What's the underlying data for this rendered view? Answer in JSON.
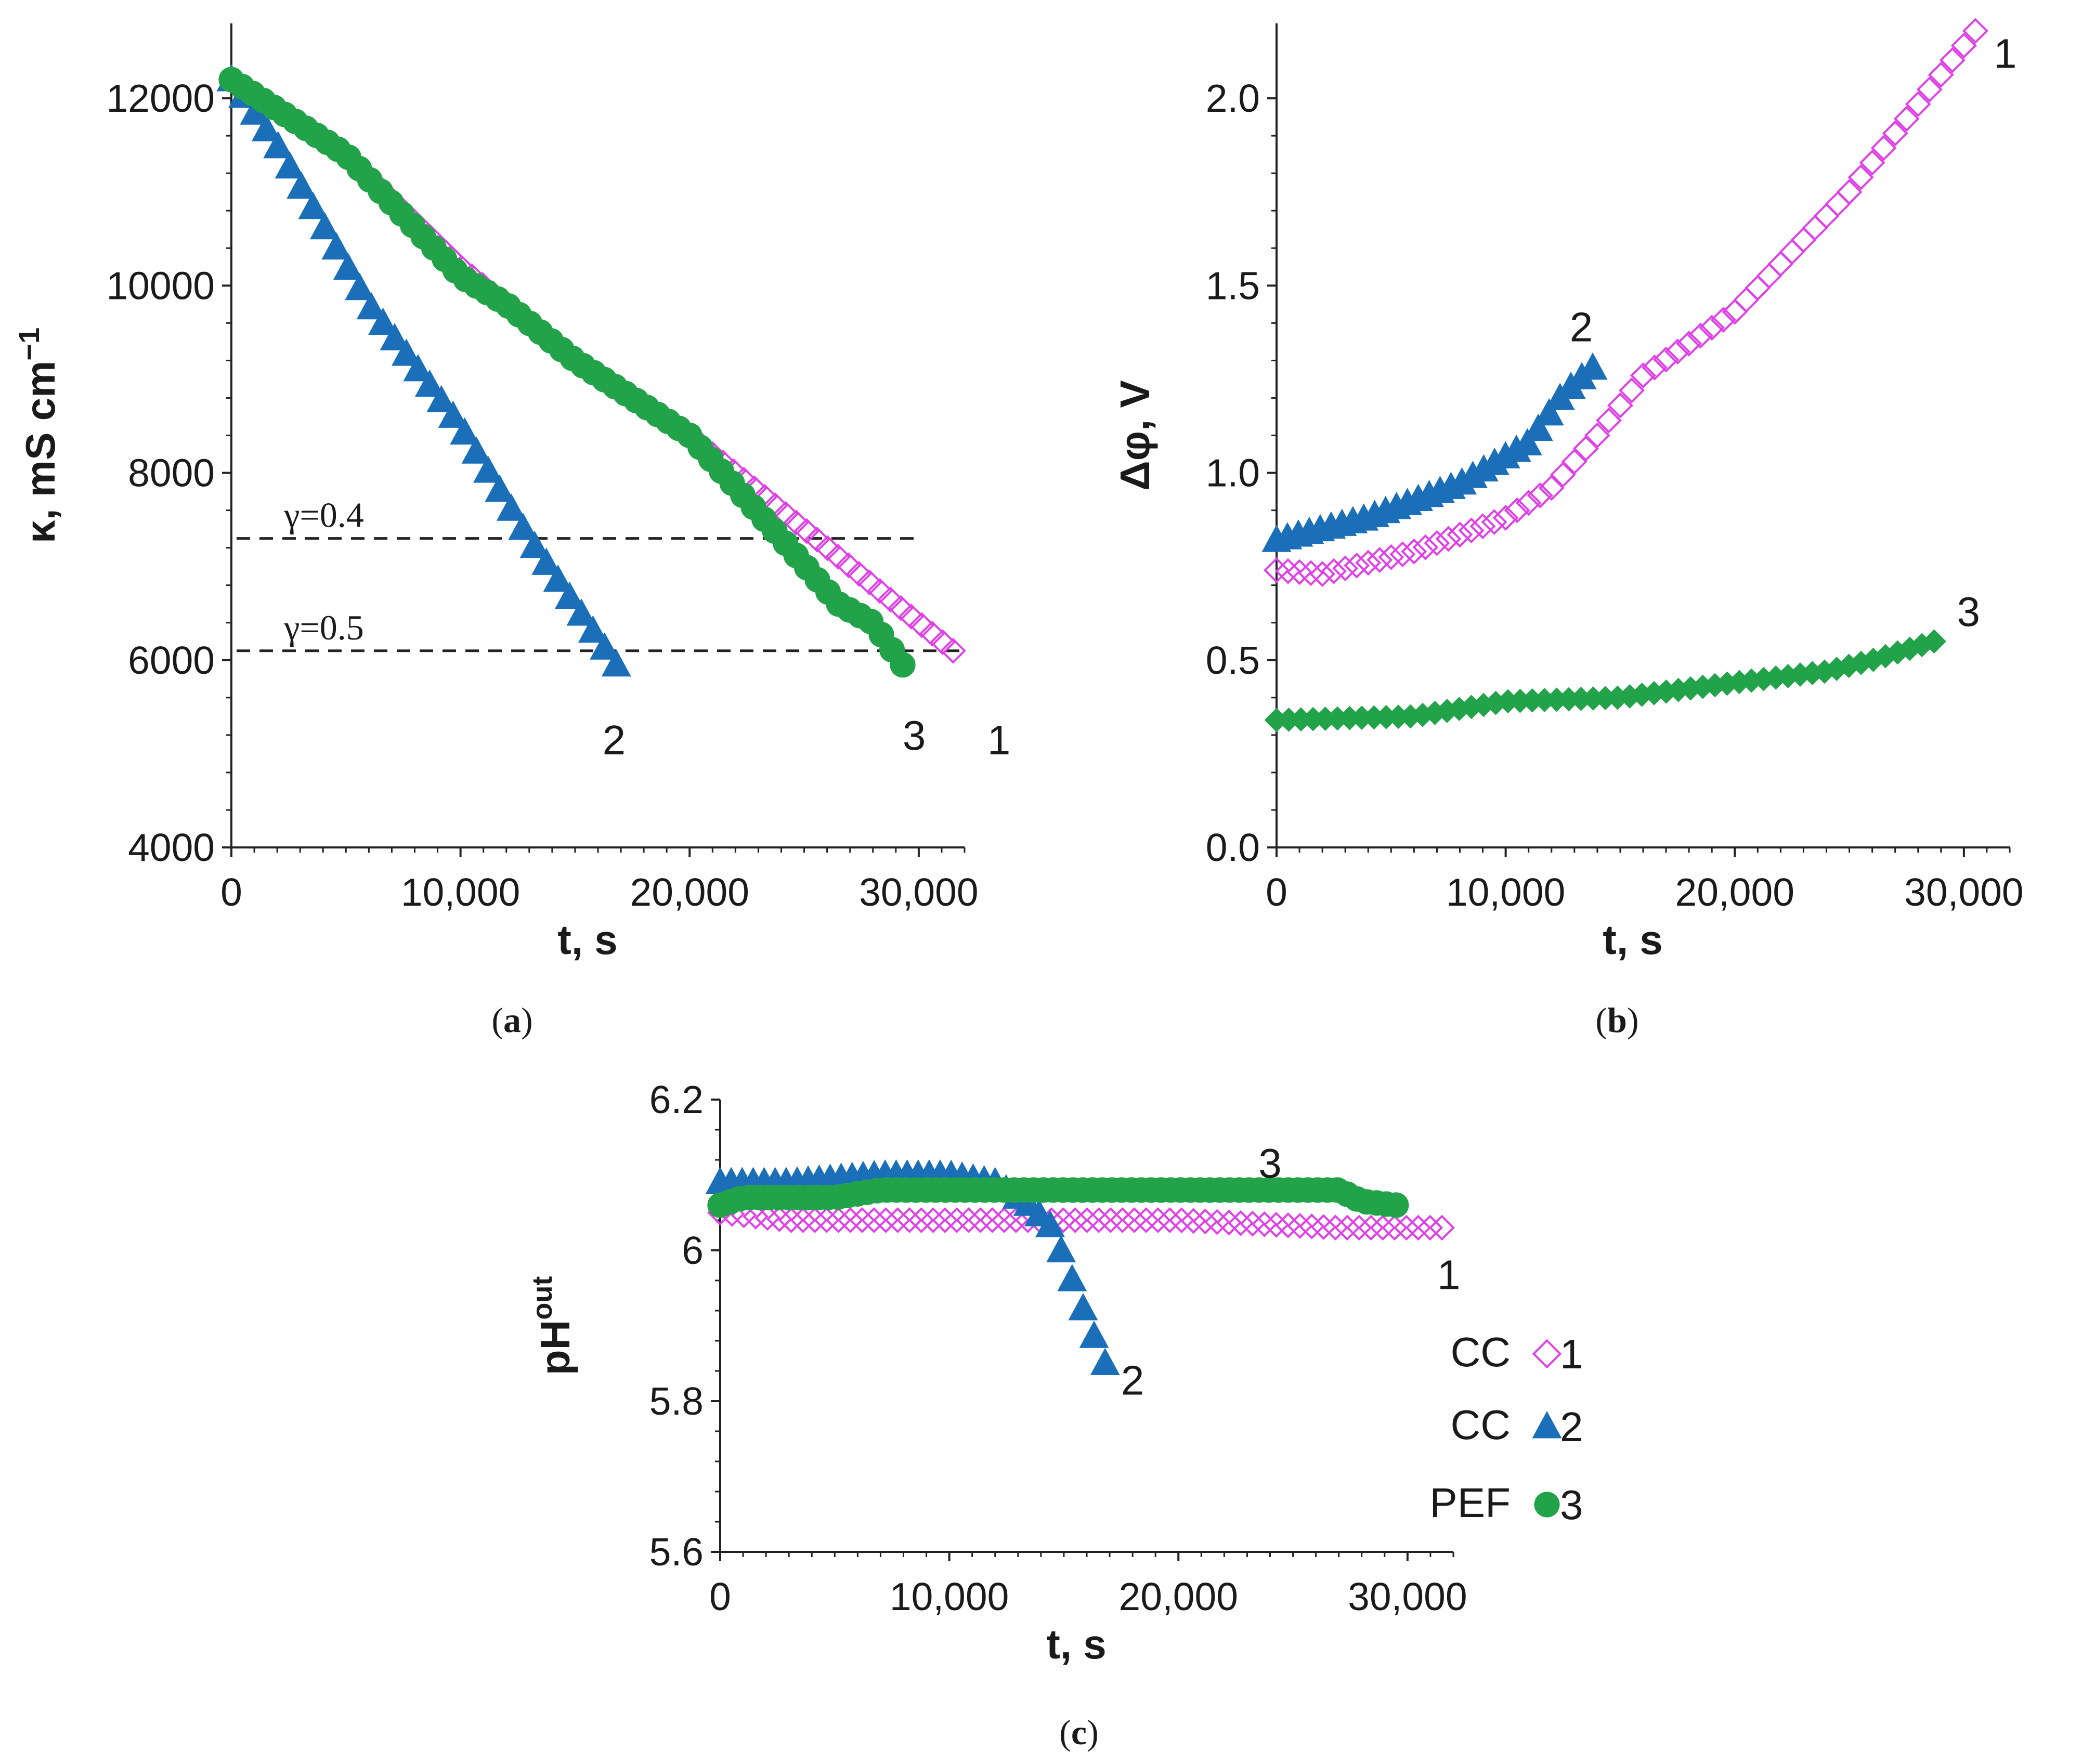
{
  "colors": {
    "cc1": "#e040e8",
    "cc2": "#1a6fb8",
    "pef3": "#22a34a",
    "axis": "#222222",
    "dashed": "#222222"
  },
  "chart_data": [
    {
      "id": "a",
      "type": "scatter",
      "panel_label": "a",
      "xlabel": "t, s",
      "ylabel": "κ, mS cm⁻¹",
      "xlim": [
        0,
        32000
      ],
      "ylim": [
        4000,
        12800
      ],
      "xticks": [
        0,
        10000,
        20000,
        30000
      ],
      "xtick_labels": [
        "0",
        "10,000",
        "20,000",
        "30,000"
      ],
      "yticks": [
        4000,
        6000,
        8000,
        10000,
        12000
      ],
      "ytick_labels": [
        "4000",
        "6000",
        "8000",
        "10000",
        "12000"
      ],
      "reference_lines": [
        {
          "label": "γ=0.4",
          "y": 7300,
          "x_range": [
            0,
            30000
          ]
        },
        {
          "label": "γ=0.5",
          "y": 6100,
          "x_range": [
            0,
            32000
          ]
        }
      ],
      "series": [
        {
          "name": "CC",
          "curve_label": "1",
          "marker": "diamond-open",
          "color_key": "cc1",
          "x_start": 0,
          "x_end": 31500,
          "n": 70,
          "points": [
            [
              0,
              12200
            ],
            [
              5000,
              11400
            ],
            [
              10000,
              10200
            ],
            [
              15000,
              9200
            ],
            [
              20000,
              8400
            ],
            [
              25000,
              7400
            ],
            [
              31500,
              6100
            ]
          ],
          "label_pos": [
            33500,
            5150
          ]
        },
        {
          "name": "CC",
          "curve_label": "2",
          "marker": "triangle",
          "color_key": "cc2",
          "x_start": 0,
          "x_end": 16800,
          "n": 34,
          "points": [
            [
              0,
              12200
            ],
            [
              2000,
              11500
            ],
            [
              6000,
              9800
            ],
            [
              10000,
              8500
            ],
            [
              13000,
              7300
            ],
            [
              16800,
              5950
            ]
          ],
          "label_pos": [
            16700,
            5150
          ]
        },
        {
          "name": "PEF",
          "curve_label": "3",
          "marker": "circle",
          "color_key": "pef3",
          "x_start": 0,
          "x_end": 29300,
          "n": 64,
          "points": [
            [
              0,
              12200
            ],
            [
              5000,
              11400
            ],
            [
              10000,
              10100
            ],
            [
              12000,
              9800
            ],
            [
              15000,
              9200
            ],
            [
              20000,
              8400
            ],
            [
              24000,
              7300
            ],
            [
              26500,
              6600
            ],
            [
              28000,
              6400
            ],
            [
              29300,
              5950
            ]
          ],
          "label_pos": [
            29800,
            5200
          ]
        }
      ]
    },
    {
      "id": "b",
      "type": "scatter",
      "panel_label": "b",
      "xlabel": "t, s",
      "ylabel": "Δφ, V",
      "xlim": [
        0,
        32000
      ],
      "ylim": [
        0.0,
        2.2
      ],
      "xticks": [
        0,
        10000,
        20000,
        30000
      ],
      "xtick_labels": [
        "0",
        "10,000",
        "20,000",
        "30,000"
      ],
      "yticks": [
        0.0,
        0.5,
        1.0,
        1.5,
        2.0
      ],
      "ytick_labels": [
        "0.0",
        "0.5",
        "1.0",
        "1.5",
        "2.0"
      ],
      "series": [
        {
          "name": "CC",
          "curve_label": "1",
          "marker": "diamond-open",
          "color_key": "cc1",
          "x_start": 0,
          "x_end": 30500,
          "n": 62,
          "points": [
            [
              0,
              0.74
            ],
            [
              2000,
              0.73
            ],
            [
              6000,
              0.79
            ],
            [
              10000,
              0.88
            ],
            [
              12000,
              0.96
            ],
            [
              14000,
              1.1
            ],
            [
              16000,
              1.26
            ],
            [
              20000,
              1.43
            ],
            [
              25000,
              1.75
            ],
            [
              30500,
              2.18
            ]
          ],
          "label_pos": [
            31800,
            2.12
          ]
        },
        {
          "name": "CC",
          "curve_label": "2",
          "marker": "triangle",
          "color_key": "cc2",
          "x_start": 0,
          "x_end": 13800,
          "n": 30,
          "points": [
            [
              0,
              0.82
            ],
            [
              4000,
              0.88
            ],
            [
              8000,
              0.97
            ],
            [
              11000,
              1.08
            ],
            [
              12500,
              1.21
            ],
            [
              13800,
              1.28
            ]
          ],
          "label_pos": [
            13300,
            1.39
          ]
        },
        {
          "name": "PEF",
          "curve_label": "3",
          "marker": "diamond",
          "color_key": "pef3",
          "x_start": 0,
          "x_end": 28700,
          "n": 55,
          "points": [
            [
              0,
              0.34
            ],
            [
              6000,
              0.35
            ],
            [
              10000,
              0.39
            ],
            [
              15000,
              0.4
            ],
            [
              20000,
              0.44
            ],
            [
              24000,
              0.47
            ],
            [
              26000,
              0.5
            ],
            [
              28700,
              0.55
            ]
          ],
          "label_pos": [
            30200,
            0.63
          ]
        }
      ]
    },
    {
      "id": "c",
      "type": "scatter",
      "panel_label": "c",
      "xlabel": "t, s",
      "ylabel": "pHout",
      "xlim": [
        0,
        32000
      ],
      "ylim": [
        5.6,
        6.2
      ],
      "xticks": [
        0,
        10000,
        20000,
        30000
      ],
      "xtick_labels": [
        "0",
        "10,000",
        "20,000",
        "30,000"
      ],
      "yticks": [
        5.6,
        5.8,
        6.0,
        6.2
      ],
      "ytick_labels": [
        "5.6",
        "5.8",
        "6",
        "6.2"
      ],
      "series": [
        {
          "name": "CC",
          "curve_label": "1",
          "marker": "diamond-open",
          "color_key": "cc1",
          "x_start": 0,
          "x_end": 31500,
          "n": 62,
          "points": [
            [
              0,
              6.05
            ],
            [
              3000,
              6.04
            ],
            [
              10000,
              6.04
            ],
            [
              20000,
              6.04
            ],
            [
              27000,
              6.03
            ],
            [
              31500,
              6.03
            ]
          ],
          "label_pos": [
            31800,
            5.968
          ]
        },
        {
          "name": "CC",
          "curve_label": "2",
          "marker": "triangle",
          "color_key": "cc2",
          "x_start": 0,
          "x_end": 16800,
          "n": 36,
          "points": [
            [
              0,
              6.09
            ],
            [
              3000,
              6.09
            ],
            [
              7000,
              6.1
            ],
            [
              10000,
              6.1
            ],
            [
              12000,
              6.09
            ],
            [
              13500,
              6.06
            ],
            [
              14500,
              6.03
            ],
            [
              16000,
              5.91
            ],
            [
              16800,
              5.85
            ]
          ],
          "label_pos": [
            18000,
            5.828
          ]
        },
        {
          "name": "PEF",
          "curve_label": "3",
          "marker": "circle",
          "color_key": "pef3",
          "x_start": 0,
          "x_end": 29500,
          "n": 70,
          "points": [
            [
              0,
              6.06
            ],
            [
              1000,
              6.07
            ],
            [
              5000,
              6.07
            ],
            [
              7000,
              6.08
            ],
            [
              27000,
              6.08
            ],
            [
              28000,
              6.065
            ],
            [
              29500,
              6.06
            ]
          ],
          "label_pos": [
            24000,
            6.116
          ]
        }
      ],
      "legend": [
        {
          "label": "CC",
          "marker": "diamond-open",
          "color_key": "cc1",
          "number": "1"
        },
        {
          "label": "CC",
          "marker": "triangle",
          "color_key": "cc2",
          "number": "2"
        },
        {
          "label": "PEF",
          "marker": "circle",
          "color_key": "pef3",
          "number": "3"
        }
      ]
    }
  ]
}
